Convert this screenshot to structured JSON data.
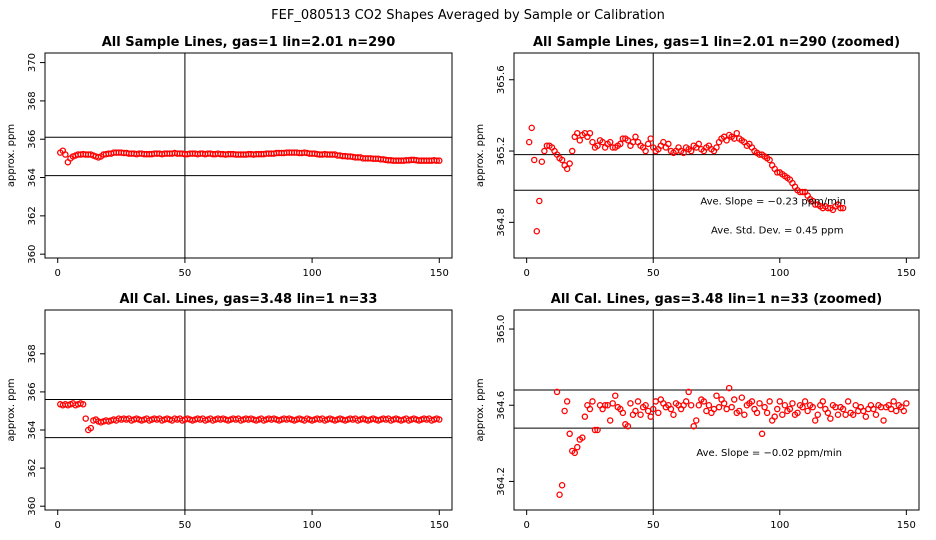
{
  "figure_title": "FEF_080513  CO2 Shapes Averaged by Sample or Calibration",
  "chart_data": [
    {
      "type": "scatter",
      "title": "All Sample Lines, gas=1 lin=2.01 n=290",
      "xlabel": "",
      "ylabel": "approx. ppm",
      "xlim": [
        -5,
        155
      ],
      "ylim": [
        359.8,
        370.5
      ],
      "xticks": [
        0,
        50,
        100,
        150
      ],
      "yticks": [
        360,
        362,
        364,
        366,
        368,
        370
      ],
      "hlines": [
        366.1,
        364.1
      ],
      "vline": 50,
      "marker_color": "#ff0000",
      "series": [
        {
          "x_start": 1,
          "x_step": 1,
          "values": [
            365.3,
            365.4,
            365.2,
            364.8,
            365.0,
            365.1,
            365.15,
            365.2,
            365.2,
            365.22,
            365.2,
            365.2,
            365.2,
            365.15,
            365.1,
            365.05,
            365.1,
            365.2,
            365.22,
            365.25,
            365.25,
            365.3,
            365.3,
            365.3,
            365.3,
            365.28,
            365.28,
            365.25,
            365.25,
            365.25,
            365.22,
            365.25,
            365.25,
            365.22,
            365.22,
            365.22,
            365.22,
            365.25,
            365.25,
            365.25,
            365.22,
            365.25,
            365.25,
            365.25,
            365.25,
            365.28,
            365.25,
            365.25,
            365.25,
            365.22,
            365.22,
            365.25,
            365.25,
            365.25,
            365.22,
            365.25,
            365.25,
            365.22,
            365.25,
            365.25,
            365.22,
            365.22,
            365.25,
            365.22,
            365.22,
            365.2,
            365.22,
            365.22,
            365.22,
            365.2,
            365.2,
            365.2,
            365.2,
            365.2,
            365.22,
            365.22,
            365.2,
            365.22,
            365.22,
            365.22,
            365.22,
            365.25,
            365.25,
            365.25,
            365.25,
            365.28,
            365.28,
            365.28,
            365.28,
            365.3,
            365.3,
            365.3,
            365.3,
            365.3,
            365.28,
            365.28,
            365.3,
            365.28,
            365.25,
            365.25,
            365.25,
            365.22,
            365.2,
            365.2,
            365.22,
            365.2,
            365.2,
            365.2,
            365.2,
            365.15,
            365.15,
            365.12,
            365.12,
            365.1,
            365.1,
            365.08,
            365.05,
            365.05,
            365.05,
            365.0,
            365.0,
            365.0,
            365.0,
            364.98,
            364.98,
            364.98,
            364.95,
            364.95,
            364.92,
            364.9,
            364.9,
            364.88,
            364.88,
            364.88,
            364.88,
            364.88,
            364.9,
            364.9,
            364.92,
            364.92,
            364.9,
            364.88,
            364.88,
            364.88,
            364.88,
            364.88,
            364.88,
            364.9,
            364.88,
            364.88
          ]
        }
      ]
    },
    {
      "type": "scatter",
      "title": "All Sample Lines, gas=1 lin=2.01 n=290 (zoomed)",
      "xlabel": "",
      "ylabel": "approx. ppm",
      "xlim": [
        -5,
        155
      ],
      "ylim": [
        364.6,
        365.75
      ],
      "xticks": [
        0,
        50,
        100,
        150
      ],
      "yticks": [
        364.8,
        365.2,
        365.6
      ],
      "hlines": [
        365.18,
        364.98
      ],
      "vline": 50,
      "marker_color": "#ff0000",
      "annotations": [
        "Ave. Slope =  −0.23  ppm/min",
        "Ave. Std. Dev. =  0.45  ppm"
      ],
      "series": [
        {
          "x_start": 1,
          "x_step": 1,
          "values": [
            365.25,
            365.33,
            365.15,
            364.75,
            364.92,
            365.14,
            365.2,
            365.23,
            365.23,
            365.22,
            365.2,
            365.18,
            365.16,
            365.15,
            365.12,
            365.1,
            365.13,
            365.2,
            365.28,
            365.3,
            365.26,
            365.29,
            365.3,
            365.28,
            365.3,
            365.25,
            365.22,
            365.23,
            365.26,
            365.25,
            365.22,
            365.24,
            365.25,
            365.22,
            365.22,
            365.23,
            365.24,
            365.27,
            365.27,
            365.26,
            365.23,
            365.25,
            365.28,
            365.25,
            365.23,
            365.22,
            365.2,
            365.24,
            365.27,
            365.22,
            365.2,
            365.21,
            365.23,
            365.25,
            365.22,
            365.24,
            365.2,
            365.19,
            365.2,
            365.22,
            365.2,
            365.19,
            365.22,
            365.21,
            365.2,
            365.23,
            365.22,
            365.24,
            365.21,
            365.2,
            365.22,
            365.23,
            365.21,
            365.2,
            365.22,
            365.25,
            365.27,
            365.28,
            365.26,
            365.29,
            365.28,
            365.27,
            365.3,
            365.27,
            365.26,
            365.25,
            365.23,
            365.24,
            365.22,
            365.2,
            365.19,
            365.18,
            365.18,
            365.17,
            365.16,
            365.15,
            365.12,
            365.1,
            365.08,
            365.08,
            365.07,
            365.06,
            365.05,
            365.04,
            365.02,
            365.0,
            364.98,
            364.97,
            364.97,
            364.97,
            364.95,
            364.93,
            364.92,
            364.9,
            364.9,
            364.89,
            364.88,
            364.89,
            364.88,
            364.88,
            364.87,
            364.89,
            364.9,
            364.88,
            364.88
          ]
        }
      ]
    },
    {
      "type": "scatter",
      "title": "All Cal. Lines, gas=3.48 lin=1 n=33",
      "xlabel": "",
      "ylabel": "approx. ppm",
      "xlim": [
        -5,
        155
      ],
      "ylim": [
        359.8,
        370.3
      ],
      "xticks": [
        0,
        50,
        100,
        150
      ],
      "yticks": [
        360,
        362,
        364,
        366,
        368
      ],
      "hlines": [
        365.6,
        363.6
      ],
      "vline": 50,
      "marker_color": "#ff0000",
      "series": [
        {
          "x_start": 1,
          "x_step": 1,
          "values": [
            365.35,
            365.3,
            365.35,
            365.3,
            365.35,
            365.4,
            365.3,
            365.35,
            365.4,
            365.35,
            364.6,
            364.0,
            364.1,
            364.5,
            364.55,
            364.45,
            364.4,
            364.45,
            364.5,
            364.45,
            364.5,
            364.55,
            364.5,
            364.6,
            364.55,
            364.6,
            364.55,
            364.6,
            364.5,
            364.55,
            364.6,
            364.55,
            364.5,
            364.55,
            364.6,
            364.5,
            364.55,
            364.6,
            364.55,
            364.6,
            364.5,
            364.55,
            364.6,
            364.55,
            364.5,
            364.6,
            364.55,
            364.6,
            364.5,
            364.55,
            364.6,
            364.55,
            364.5,
            364.55,
            364.6,
            364.55,
            364.6,
            364.5,
            364.55,
            364.6,
            364.5,
            364.55,
            364.6,
            364.55,
            364.6,
            364.55,
            364.5,
            364.55,
            364.6,
            364.55,
            364.6,
            364.5,
            364.55,
            364.6,
            364.55,
            364.6,
            364.55,
            364.5,
            364.55,
            364.6,
            364.5,
            364.55,
            364.6,
            364.55,
            364.6,
            364.55,
            364.5,
            364.55,
            364.6,
            364.55,
            364.6,
            364.55,
            364.5,
            364.55,
            364.6,
            364.55,
            364.5,
            364.6,
            364.55,
            364.5,
            364.55,
            364.6,
            364.55,
            364.6,
            364.5,
            364.55,
            364.6,
            364.55,
            364.5,
            364.55,
            364.6,
            364.55,
            364.5,
            364.55,
            364.6,
            364.55,
            364.6,
            364.5,
            364.55,
            364.6,
            364.55,
            364.5,
            364.55,
            364.6,
            364.55,
            364.5,
            364.55,
            364.6,
            364.55,
            364.6,
            364.5,
            364.55,
            364.6,
            364.55,
            364.5,
            364.55,
            364.6,
            364.5,
            364.55,
            364.6,
            364.55,
            364.5,
            364.55,
            364.6,
            364.55,
            364.6,
            364.5,
            364.55,
            364.6,
            364.55
          ]
        }
      ]
    },
    {
      "type": "scatter",
      "title": "All Cal. Lines, gas=3.48 lin=1 n=33 (zoomed)",
      "xlabel": "",
      "ylabel": "approx. ppm",
      "xlim": [
        -5,
        155
      ],
      "ylim": [
        364.05,
        365.1
      ],
      "xticks": [
        0,
        50,
        100,
        150
      ],
      "yticks": [
        364.2,
        364.6,
        365.0
      ],
      "hlines": [
        364.68,
        364.48
      ],
      "vline": 50,
      "marker_color": "#ff0000",
      "annotations": [
        "Ave. Slope =  −0.02  ppm/min"
      ],
      "series": [
        {
          "x_start": 12,
          "x_step": 1,
          "values": [
            364.67,
            364.13,
            364.18,
            364.57,
            364.62,
            364.45,
            364.36,
            364.35,
            364.38,
            364.42,
            364.43,
            364.54,
            364.6,
            364.58,
            364.62,
            364.47,
            364.47,
            364.6,
            364.58,
            364.6,
            364.6,
            364.52,
            364.61,
            364.65,
            364.59,
            364.58,
            364.56,
            364.5,
            364.49,
            364.61,
            364.55,
            364.57,
            364.62,
            364.55,
            364.59,
            364.6,
            364.57,
            364.54,
            364.58,
            364.62,
            364.56,
            364.63,
            364.61,
            364.59,
            364.6,
            364.58,
            364.55,
            364.61,
            364.6,
            364.58,
            364.6,
            364.62,
            364.67,
            364.6,
            364.49,
            364.52,
            364.6,
            364.63,
            364.62,
            364.57,
            364.6,
            364.56,
            364.58,
            364.65,
            364.59,
            364.63,
            364.61,
            364.58,
            364.69,
            364.59,
            364.63,
            364.56,
            364.57,
            364.64,
            364.55,
            364.6,
            364.61,
            364.62,
            364.58,
            364.56,
            364.61,
            364.45,
            364.59,
            364.56,
            364.62,
            364.52,
            364.54,
            364.58,
            364.62,
            364.55,
            364.6,
            364.57,
            364.58,
            364.61,
            364.55,
            364.56,
            364.6,
            364.59,
            364.62,
            364.57,
            364.6,
            364.59,
            364.52,
            364.55,
            364.6,
            364.62,
            364.58,
            364.56,
            364.53,
            364.6,
            364.59,
            364.55,
            364.59,
            364.58,
            364.55,
            364.62,
            364.56,
            364.55,
            364.6,
            364.57,
            364.59,
            364.57,
            364.54,
            364.58,
            364.6,
            364.58,
            364.55,
            364.6,
            364.59,
            364.52,
            364.59,
            364.6,
            364.58,
            364.62,
            364.57,
            364.6,
            364.59,
            364.57,
            364.61
          ]
        }
      ]
    }
  ]
}
